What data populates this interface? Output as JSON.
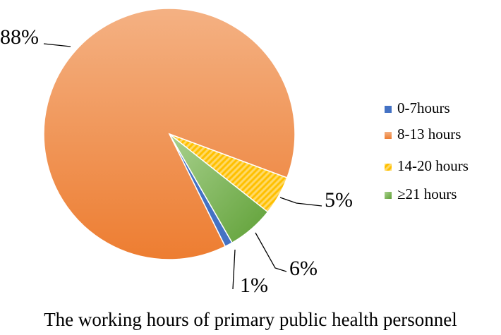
{
  "chart_data": {
    "type": "pie",
    "title": "The working hours of primary public health personnel",
    "categories": [
      "0-7hours",
      "8-13 hours",
      "14-20 hours",
      "≥21 hours"
    ],
    "values": [
      1,
      88,
      5,
      6
    ],
    "value_labels": [
      "1%",
      "88%",
      "5%",
      "6%"
    ],
    "colors": [
      "#4472c4",
      "#ed7d31",
      "#ffc000",
      "#70ad47"
    ],
    "legend": "right"
  }
}
